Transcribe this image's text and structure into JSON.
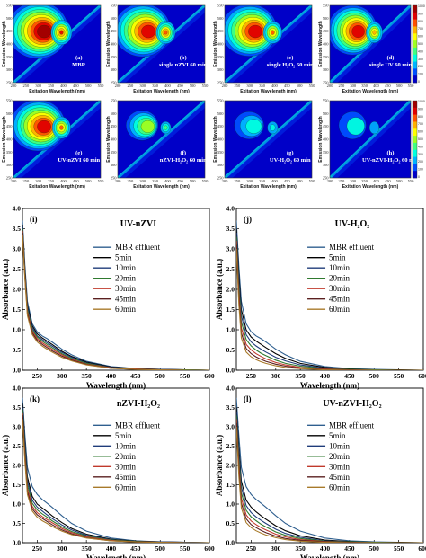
{
  "figure": {
    "eem_panels": [
      {
        "letter": "(a)",
        "caption": [
          "MBR"
        ],
        "xlabel": "Exitation Wavelength (nm)",
        "ylabel": "Emission Wavelength",
        "x_ticks": [
          "200",
          "250",
          "300",
          "350",
          "400",
          "450",
          "500",
          "550"
        ],
        "y_ticks": [
          "250",
          "300",
          "350",
          "400",
          "450",
          "500",
          "550"
        ],
        "intensity": 1.0,
        "colorbar": false
      },
      {
        "letter": "(b)",
        "caption": [
          "single nZVI 60 min"
        ],
        "xlabel": "Exitation Wavelength (nm)",
        "ylabel": "Emission Wavelength",
        "x_ticks": [
          "200",
          "250",
          "300",
          "350",
          "400",
          "450",
          "500",
          "550"
        ],
        "y_ticks": [
          "250",
          "300",
          "350",
          "400",
          "450",
          "500",
          "550"
        ],
        "intensity": 0.92,
        "colorbar": false
      },
      {
        "letter": "(c)",
        "caption": [
          "single H₂O₂ 60 min"
        ],
        "xlabel": "Exitation Wavelength (nm)",
        "ylabel": "Emission Wavelength",
        "x_ticks": [
          "200",
          "250",
          "300",
          "350",
          "400",
          "450",
          "500",
          "550"
        ],
        "y_ticks": [
          "250",
          "300",
          "350",
          "400",
          "450",
          "500",
          "550"
        ],
        "intensity": 0.9,
        "colorbar": false
      },
      {
        "letter": "(d)",
        "caption": [
          "single UV 60 min"
        ],
        "xlabel": "Exitation Wavelength (nm)",
        "ylabel": "Emission Wavelength",
        "x_ticks": [
          "200",
          "250",
          "300",
          "350",
          "400",
          "450",
          "500",
          "550"
        ],
        "y_ticks": [
          "250",
          "300",
          "350",
          "400",
          "450",
          "500",
          "550"
        ],
        "intensity": 0.85,
        "colorbar": true
      },
      {
        "letter": "(e)",
        "caption": [
          "UV-nZVI 60 min"
        ],
        "xlabel": "Exitation Wavelength (nm)",
        "ylabel": "Emission Wavelength",
        "x_ticks": [
          "200",
          "250",
          "300",
          "350",
          "400",
          "450",
          "500",
          "550"
        ],
        "y_ticks": [
          "250",
          "300",
          "350",
          "400",
          "450",
          "500",
          "550"
        ],
        "intensity": 0.88,
        "colorbar": false
      },
      {
        "letter": "(f)",
        "caption": [
          "nZVI-H₂O₂ 60 min"
        ],
        "xlabel": "Exitation Wavelength (nm)",
        "ylabel": "Emission Wavelength",
        "x_ticks": [
          "200",
          "250",
          "300",
          "350",
          "400",
          "450",
          "500",
          "550"
        ],
        "y_ticks": [
          "250",
          "300",
          "350",
          "400",
          "450",
          "500",
          "550"
        ],
        "intensity": 0.45,
        "colorbar": false
      },
      {
        "letter": "(g)",
        "caption": [
          "UV-H₂O₂ 60 min"
        ],
        "xlabel": "Exitation Wavelength (nm)",
        "ylabel": "Emission Wavelength",
        "x_ticks": [
          "200",
          "250",
          "300",
          "350",
          "400",
          "450",
          "500",
          "550"
        ],
        "y_ticks": [
          "250",
          "300",
          "350",
          "400",
          "450",
          "500",
          "550"
        ],
        "intensity": 0.25,
        "colorbar": false
      },
      {
        "letter": "(h)",
        "caption": [
          "UV-nZVI-H₂O₂ 60 min"
        ],
        "xlabel": "Exitation Wavelength (nm)",
        "ylabel": "Emission Wavelength",
        "x_ticks": [
          "200",
          "250",
          "300",
          "350",
          "400",
          "450",
          "500",
          "550"
        ],
        "y_ticks": [
          "250",
          "300",
          "350",
          "400",
          "450",
          "500",
          "550"
        ],
        "intensity": 0.18,
        "colorbar": true
      }
    ],
    "colorbar_ticks": [
      "1000",
      "900",
      "800",
      "700",
      "600",
      "500",
      "400",
      "300",
      "200",
      "100",
      "0"
    ],
    "colormap": [
      "#0000c8",
      "#0050ff",
      "#00b4ff",
      "#00ffe0",
      "#40ff80",
      "#a0ff20",
      "#ffff00",
      "#ffb000",
      "#ff5000",
      "#e00000",
      "#a00000"
    ]
  },
  "chart_data": [
    {
      "type": "line",
      "panel": "(i)",
      "title": "UV-nZVI",
      "xlabel": "Wavelength (nm)",
      "ylabel": "Absorbance (a.u.)",
      "xlim": [
        220,
        600
      ],
      "ylim": [
        0,
        4.0
      ],
      "x_ticks": [
        250,
        300,
        350,
        400,
        450,
        500,
        550,
        600
      ],
      "y_ticks": [
        0.0,
        0.5,
        1.0,
        1.5,
        2.0,
        2.5,
        3.0,
        3.5,
        4.0
      ],
      "y_tick_labels": [
        "0.0",
        "0.5",
        "1.0",
        "1.5",
        "2.0",
        "2.5",
        "3.0",
        "3.5",
        "4.0"
      ],
      "x": [
        220,
        225,
        230,
        240,
        250,
        260,
        270,
        280,
        300,
        320,
        350,
        400,
        450,
        500,
        550,
        600
      ],
      "series": [
        {
          "name": "MBR effluent",
          "color": "#2f5f8f",
          "values": [
            3.7,
            2.6,
            1.7,
            1.15,
            0.95,
            0.85,
            0.78,
            0.7,
            0.52,
            0.38,
            0.22,
            0.09,
            0.04,
            0.02,
            0.01,
            0.0
          ]
        },
        {
          "name": "5min",
          "color": "#000000",
          "values": [
            3.6,
            2.5,
            1.6,
            1.1,
            0.9,
            0.8,
            0.72,
            0.64,
            0.47,
            0.34,
            0.2,
            0.08,
            0.04,
            0.02,
            0.01,
            0.0
          ]
        },
        {
          "name": "10min",
          "color": "#1f3c7a",
          "values": [
            3.55,
            2.45,
            1.55,
            1.05,
            0.85,
            0.76,
            0.68,
            0.6,
            0.44,
            0.32,
            0.18,
            0.07,
            0.03,
            0.02,
            0.01,
            0.0
          ]
        },
        {
          "name": "20min",
          "color": "#2f7a2f",
          "values": [
            3.5,
            2.4,
            1.5,
            1.0,
            0.82,
            0.72,
            0.64,
            0.56,
            0.41,
            0.29,
            0.17,
            0.06,
            0.03,
            0.01,
            0.01,
            0.0
          ]
        },
        {
          "name": "30min",
          "color": "#c0392b",
          "values": [
            3.45,
            2.35,
            1.45,
            0.96,
            0.78,
            0.68,
            0.6,
            0.52,
            0.38,
            0.27,
            0.15,
            0.06,
            0.03,
            0.01,
            0.0,
            0.0
          ]
        },
        {
          "name": "45min",
          "color": "#5a1f1f",
          "values": [
            3.4,
            2.3,
            1.4,
            0.92,
            0.74,
            0.64,
            0.56,
            0.48,
            0.35,
            0.25,
            0.14,
            0.05,
            0.02,
            0.01,
            0.0,
            0.0
          ]
        },
        {
          "name": "60min",
          "color": "#a87a2a",
          "values": [
            3.35,
            2.25,
            1.35,
            0.88,
            0.7,
            0.6,
            0.52,
            0.45,
            0.32,
            0.23,
            0.13,
            0.05,
            0.02,
            0.01,
            0.0,
            0.0
          ]
        }
      ]
    },
    {
      "type": "line",
      "panel": "(j)",
      "title": "UV-H₂O₂",
      "xlabel": "Wavelength (nm)",
      "ylabel": "Absorbance (a.u.)",
      "xlim": [
        220,
        600
      ],
      "ylim": [
        0,
        4.0
      ],
      "x_ticks": [
        250,
        300,
        350,
        400,
        450,
        500,
        550,
        600
      ],
      "y_ticks": [
        0.0,
        0.5,
        1.0,
        1.5,
        2.0,
        2.5,
        3.0,
        3.5,
        4.0
      ],
      "y_tick_labels": [
        "0.0",
        "0.5",
        "1.0",
        "1.5",
        "2.0",
        "2.5",
        "3.0",
        "3.5",
        "4.0"
      ],
      "x": [
        220,
        225,
        230,
        240,
        250,
        260,
        270,
        280,
        300,
        320,
        350,
        400,
        450,
        500,
        550,
        600
      ],
      "series": [
        {
          "name": "MBR effluent",
          "color": "#2f5f8f",
          "values": [
            3.7,
            2.6,
            1.7,
            1.15,
            0.95,
            0.85,
            0.78,
            0.7,
            0.52,
            0.38,
            0.22,
            0.09,
            0.04,
            0.02,
            0.01,
            0.0
          ]
        },
        {
          "name": "5min",
          "color": "#000000",
          "values": [
            3.5,
            2.4,
            1.5,
            1.0,
            0.82,
            0.72,
            0.64,
            0.56,
            0.41,
            0.29,
            0.17,
            0.07,
            0.03,
            0.01,
            0.01,
            0.0
          ]
        },
        {
          "name": "10min",
          "color": "#1f3c7a",
          "values": [
            3.4,
            2.25,
            1.35,
            0.88,
            0.7,
            0.6,
            0.52,
            0.45,
            0.32,
            0.23,
            0.13,
            0.05,
            0.02,
            0.01,
            0.0,
            0.0
          ]
        },
        {
          "name": "20min",
          "color": "#2f7a2f",
          "values": [
            3.3,
            2.1,
            1.2,
            0.76,
            0.6,
            0.5,
            0.42,
            0.36,
            0.25,
            0.17,
            0.1,
            0.04,
            0.02,
            0.01,
            0.0,
            0.0
          ]
        },
        {
          "name": "30min",
          "color": "#c0392b",
          "values": [
            3.2,
            1.95,
            1.05,
            0.64,
            0.5,
            0.41,
            0.34,
            0.28,
            0.19,
            0.13,
            0.07,
            0.03,
            0.01,
            0.0,
            0.0,
            0.0
          ]
        },
        {
          "name": "45min",
          "color": "#5a1f1f",
          "values": [
            3.1,
            1.8,
            0.92,
            0.54,
            0.41,
            0.33,
            0.27,
            0.22,
            0.15,
            0.1,
            0.05,
            0.02,
            0.01,
            0.0,
            0.0,
            0.0
          ]
        },
        {
          "name": "60min",
          "color": "#a87a2a",
          "values": [
            3.0,
            1.65,
            0.8,
            0.45,
            0.33,
            0.26,
            0.21,
            0.17,
            0.11,
            0.07,
            0.04,
            0.01,
            0.0,
            0.0,
            0.0,
            0.0
          ]
        }
      ]
    },
    {
      "type": "line",
      "panel": "(k)",
      "title": "nZVI-H₂O₂",
      "xlabel": "Wavelength (nm)",
      "ylabel": "Absorbance (a.u.)",
      "xlim": [
        220,
        600
      ],
      "ylim": [
        0,
        4.0
      ],
      "x_ticks": [
        250,
        300,
        350,
        400,
        450,
        500,
        550,
        600
      ],
      "y_ticks": [
        0.0,
        0.5,
        1.0,
        1.5,
        2.0,
        2.5,
        3.0,
        3.5,
        4.0
      ],
      "y_tick_labels": [
        "0.0",
        "0.5",
        "1.0",
        "1.5",
        "2.0",
        "2.5",
        "3.0",
        "3.5",
        "4.0"
      ],
      "x": [
        220,
        225,
        230,
        240,
        250,
        260,
        270,
        280,
        300,
        320,
        350,
        400,
        450,
        500,
        550,
        600
      ],
      "series": [
        {
          "name": "MBR effluent",
          "color": "#2f5f8f",
          "values": [
            3.75,
            2.8,
            1.95,
            1.45,
            1.25,
            1.12,
            1.02,
            0.92,
            0.7,
            0.5,
            0.3,
            0.12,
            0.05,
            0.02,
            0.01,
            0.0
          ]
        },
        {
          "name": "5min",
          "color": "#000000",
          "values": [
            3.6,
            2.6,
            1.7,
            1.2,
            1.0,
            0.9,
            0.8,
            0.7,
            0.52,
            0.37,
            0.22,
            0.09,
            0.04,
            0.02,
            0.01,
            0.0
          ]
        },
        {
          "name": "10min",
          "color": "#1f3c7a",
          "values": [
            3.5,
            2.5,
            1.6,
            1.1,
            0.92,
            0.82,
            0.72,
            0.63,
            0.46,
            0.33,
            0.19,
            0.08,
            0.03,
            0.02,
            0.01,
            0.0
          ]
        },
        {
          "name": "20min",
          "color": "#2f7a2f",
          "values": [
            3.45,
            2.4,
            1.5,
            1.02,
            0.85,
            0.75,
            0.66,
            0.57,
            0.41,
            0.29,
            0.17,
            0.07,
            0.03,
            0.01,
            0.0,
            0.0
          ]
        },
        {
          "name": "30min",
          "color": "#c0392b",
          "values": [
            3.35,
            2.3,
            1.4,
            0.94,
            0.78,
            0.68,
            0.6,
            0.52,
            0.37,
            0.26,
            0.15,
            0.06,
            0.02,
            0.01,
            0.0,
            0.0
          ]
        },
        {
          "name": "45min",
          "color": "#5a1f1f",
          "values": [
            3.3,
            2.2,
            1.32,
            0.88,
            0.72,
            0.63,
            0.55,
            0.47,
            0.33,
            0.23,
            0.13,
            0.05,
            0.02,
            0.01,
            0.0,
            0.0
          ]
        },
        {
          "name": "60min",
          "color": "#a87a2a",
          "values": [
            3.2,
            2.1,
            1.25,
            0.82,
            0.66,
            0.57,
            0.5,
            0.42,
            0.3,
            0.21,
            0.12,
            0.05,
            0.02,
            0.01,
            0.0,
            0.0
          ]
        }
      ]
    },
    {
      "type": "line",
      "panel": "(l)",
      "title": "UV-nZVI-H₂O₂",
      "xlabel": "Wavelength (nm)",
      "ylabel": "Absorbance (a.u.)",
      "xlim": [
        220,
        600
      ],
      "ylim": [
        0,
        4.0
      ],
      "x_ticks": [
        250,
        300,
        350,
        400,
        450,
        500,
        550,
        600
      ],
      "y_ticks": [
        0.0,
        0.5,
        1.0,
        1.5,
        2.0,
        2.5,
        3.0,
        3.5,
        4.0
      ],
      "y_tick_labels": [
        "0.0",
        "0.5",
        "1.0",
        "1.5",
        "2.0",
        "2.5",
        "3.0",
        "3.5",
        "4.0"
      ],
      "x": [
        220,
        225,
        230,
        240,
        250,
        260,
        270,
        280,
        300,
        320,
        350,
        400,
        450,
        500,
        550,
        600
      ],
      "series": [
        {
          "name": "MBR effluent",
          "color": "#2f5f8f",
          "values": [
            3.75,
            2.8,
            1.95,
            1.45,
            1.25,
            1.12,
            1.02,
            0.92,
            0.7,
            0.5,
            0.3,
            0.12,
            0.05,
            0.02,
            0.01,
            0.0
          ]
        },
        {
          "name": "5min",
          "color": "#000000",
          "values": [
            3.5,
            2.5,
            1.6,
            1.1,
            0.92,
            0.8,
            0.7,
            0.61,
            0.44,
            0.31,
            0.18,
            0.07,
            0.03,
            0.01,
            0.01,
            0.0
          ]
        },
        {
          "name": "10min",
          "color": "#1f3c7a",
          "values": [
            3.4,
            2.35,
            1.45,
            0.96,
            0.78,
            0.67,
            0.58,
            0.5,
            0.35,
            0.24,
            0.14,
            0.05,
            0.02,
            0.01,
            0.0,
            0.0
          ]
        },
        {
          "name": "20min",
          "color": "#2f7a2f",
          "values": [
            3.3,
            2.2,
            1.3,
            0.84,
            0.67,
            0.57,
            0.48,
            0.41,
            0.28,
            0.19,
            0.11,
            0.04,
            0.02,
            0.01,
            0.0,
            0.0
          ]
        },
        {
          "name": "30min",
          "color": "#c0392b",
          "values": [
            3.2,
            2.05,
            1.15,
            0.72,
            0.56,
            0.47,
            0.39,
            0.33,
            0.22,
            0.15,
            0.08,
            0.03,
            0.01,
            0.0,
            0.0,
            0.0
          ]
        },
        {
          "name": "45min",
          "color": "#5a1f1f",
          "values": [
            3.1,
            1.9,
            1.02,
            0.62,
            0.47,
            0.39,
            0.32,
            0.26,
            0.17,
            0.11,
            0.06,
            0.02,
            0.01,
            0.0,
            0.0,
            0.0
          ]
        },
        {
          "name": "60min",
          "color": "#a87a2a",
          "values": [
            3.0,
            1.75,
            0.9,
            0.52,
            0.39,
            0.31,
            0.25,
            0.2,
            0.13,
            0.08,
            0.04,
            0.01,
            0.0,
            0.0,
            0.0,
            0.0
          ]
        }
      ]
    }
  ]
}
